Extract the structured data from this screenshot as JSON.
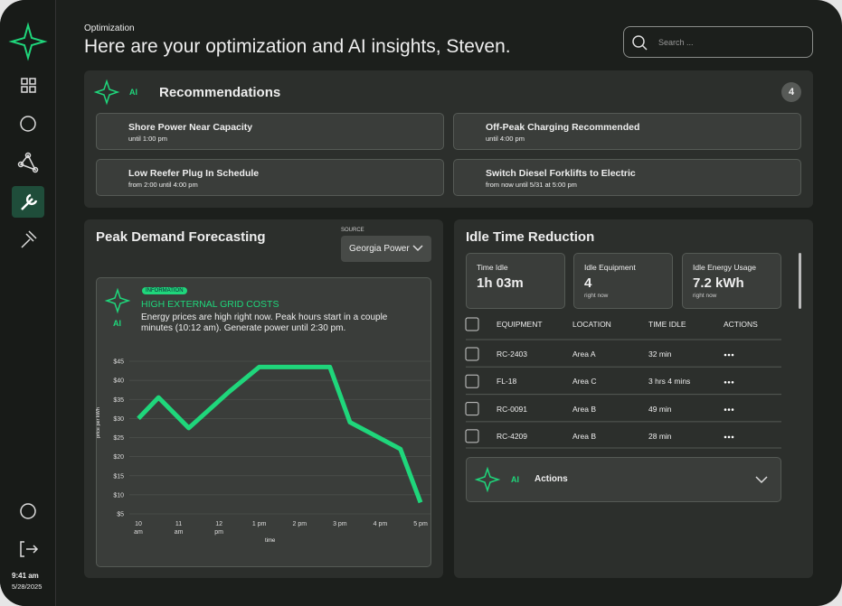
{
  "sidebar": {
    "time": "9:41 am",
    "date": "5/28/2025"
  },
  "header": {
    "eyebrow": "Optimization",
    "title": "Here are your optimization and AI insights, Steven.",
    "search_placeholder": "Search ..."
  },
  "recommendations": {
    "ai": "AI",
    "title": "Recommendations",
    "count": 4,
    "items": [
      {
        "title": "Shore Power Near Capacity",
        "subtitle": "until 1:00 pm"
      },
      {
        "title": "Off-Peak Charging Recommended",
        "subtitle": "until 4:00 pm"
      },
      {
        "title": "Low Reefer Plug In Schedule",
        "subtitle": "from 2:00 until 4:00 pm"
      },
      {
        "title": "Switch Diesel Forklifts to Electric",
        "subtitle": "from now until 5/31 at 5:00 pm"
      }
    ]
  },
  "peak": {
    "title": "Peak Demand Forecasting",
    "source_label": "SOURCE",
    "source": "Georgia Power",
    "info": {
      "ai": "AI",
      "badge": "INFORMATION",
      "heading": "HIGH EXTERNAL GRID COSTS",
      "text": "Energy prices are high right now. Peak hours start in a couple minutes (10:12 am). Generate power until 2:30 pm."
    }
  },
  "chart_data": {
    "type": "line",
    "x_label": "time",
    "y_label": "price per kWh",
    "color": "#1fd67b",
    "x": [
      10,
      10.5,
      11.25,
      12.25,
      13,
      14.75,
      15.25,
      16.5,
      17
    ],
    "values": [
      30,
      35.5,
      27.5,
      37,
      43.5,
      43.5,
      29,
      22,
      8
    ],
    "xlim": [
      10,
      17
    ],
    "ylim": [
      5,
      45
    ],
    "xticks": [
      {
        "value": 10,
        "label": "10 am"
      },
      {
        "value": 11,
        "label": "11 am"
      },
      {
        "value": 12,
        "label": "12 pm"
      },
      {
        "value": 13,
        "label": "1 pm"
      },
      {
        "value": 14,
        "label": "2 pm"
      },
      {
        "value": 15,
        "label": "3 pm"
      },
      {
        "value": 16,
        "label": "4 pm"
      },
      {
        "value": 17,
        "label": "5 pm"
      }
    ],
    "yticks": [
      {
        "value": 5,
        "label": "$5"
      },
      {
        "value": 10,
        "label": "$10"
      },
      {
        "value": 15,
        "label": "$15"
      },
      {
        "value": 20,
        "label": "$20"
      },
      {
        "value": 25,
        "label": "$25"
      },
      {
        "value": 30,
        "label": "$30"
      },
      {
        "value": 35,
        "label": "$35"
      },
      {
        "value": 40,
        "label": "$40"
      },
      {
        "value": 45,
        "label": "$45"
      }
    ],
    "grid": true
  },
  "idle": {
    "title": "Idle Time Reduction",
    "stats": [
      {
        "label": "Time Idle",
        "value": "1h 03m"
      },
      {
        "label": "Idle Equipment",
        "value": "4",
        "note": "right now"
      },
      {
        "label": "Idle Energy Usage",
        "value": "7.2 kWh",
        "note": "right now"
      }
    ],
    "table": {
      "headers": [
        "EQUIPMENT",
        "LOCATION",
        "TIME IDLE",
        "ACTIONS"
      ],
      "rows": [
        [
          "RC-2403",
          "Area A",
          "32 min"
        ],
        [
          "FL-18",
          "Area C",
          "3 hrs 4 mins"
        ],
        [
          "RC-0091",
          "Area B",
          "49 min"
        ],
        [
          "RC-4209",
          "Area B",
          "28 min"
        ]
      ]
    },
    "actions": {
      "ai": "AI",
      "title": "Actions"
    }
  }
}
